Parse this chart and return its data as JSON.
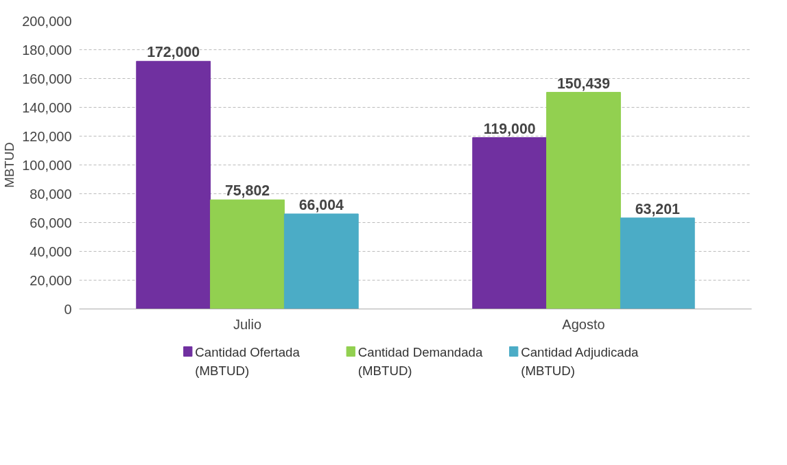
{
  "chart_data": {
    "type": "bar",
    "ylabel": "MBTUD",
    "categories": [
      "Julio",
      "Agosto"
    ],
    "series": [
      {
        "name": "Cantidad Ofertada\n(MBTUD)",
        "color": "#7030a0",
        "values": [
          172000,
          119000
        ]
      },
      {
        "name": "Cantidad Demandada\n(MBTUD)",
        "color": "#92d050",
        "values": [
          75802,
          150439
        ]
      },
      {
        "name": "Cantidad Adjudicada\n(MBTUD)",
        "color": "#4bacc6",
        "values": [
          66004,
          63201
        ]
      }
    ],
    "ylim": [
      0,
      200000
    ],
    "yticks": [
      0,
      {
        "value": 20000,
        "label": "20,000"
      },
      {
        "value": 40000,
        "label": "40,000"
      },
      {
        "value": 60000,
        "label": "60,000"
      },
      {
        "value": 80000,
        "label": "80,000"
      },
      {
        "value": 100000,
        "label": "100,000"
      },
      {
        "value": 120000,
        "label": "120,000"
      },
      {
        "value": 140000,
        "label": "140,000"
      },
      {
        "value": 160000,
        "label": "160,000"
      },
      {
        "value": 180000,
        "label": "180,000"
      },
      {
        "value": 200000,
        "label": "200,000"
      }
    ],
    "value_labels": [
      [
        "172,000",
        "119,000"
      ],
      [
        "75,802",
        "150,439"
      ],
      [
        "66,004",
        "63,201"
      ]
    ],
    "grid": "y",
    "legend": "bottom"
  }
}
